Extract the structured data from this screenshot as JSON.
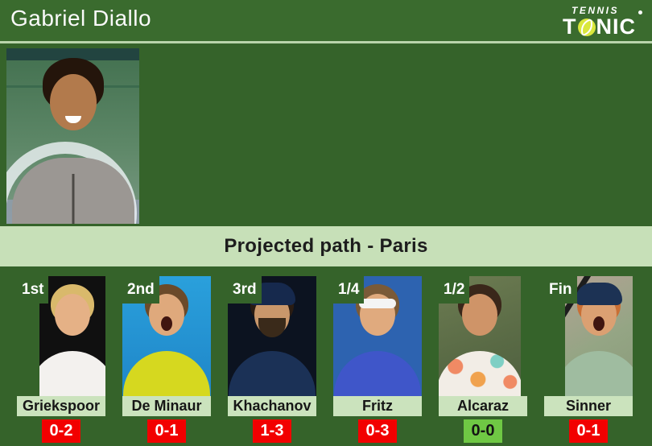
{
  "header": {
    "player_name": "Gabriel Diallo"
  },
  "logo": {
    "top_text": "TENNIS",
    "brand_t": "T",
    "brand_nic": "NIC",
    "registered": "®"
  },
  "section": {
    "title": "Projected path - Paris"
  },
  "opponents": [
    {
      "round": "1st",
      "name": "Griekspoor",
      "h2h": "0-2",
      "badge": "red"
    },
    {
      "round": "2nd",
      "name": "De Minaur",
      "h2h": "0-1",
      "badge": "red"
    },
    {
      "round": "3rd",
      "name": "Khachanov",
      "h2h": "1-3",
      "badge": "red"
    },
    {
      "round": "1/4",
      "name": "Fritz",
      "h2h": "0-3",
      "badge": "red"
    },
    {
      "round": "1/2",
      "name": "Alcaraz",
      "h2h": "0-0",
      "badge": "green"
    },
    {
      "round": "Fin",
      "name": "Sinner",
      "h2h": "0-1",
      "badge": "red"
    }
  ],
  "colors": {
    "background_green": "#35632a",
    "divider_light_green": "#b9d4ab",
    "title_band_green": "#c7e0b8",
    "name_band_green": "#cbe3bd",
    "record_red": "#f20000",
    "record_green": "#6fc844",
    "ball_yellow": "#d9e73c",
    "text_dark": "#1d1d1d",
    "text_white": "#fafafa"
  }
}
